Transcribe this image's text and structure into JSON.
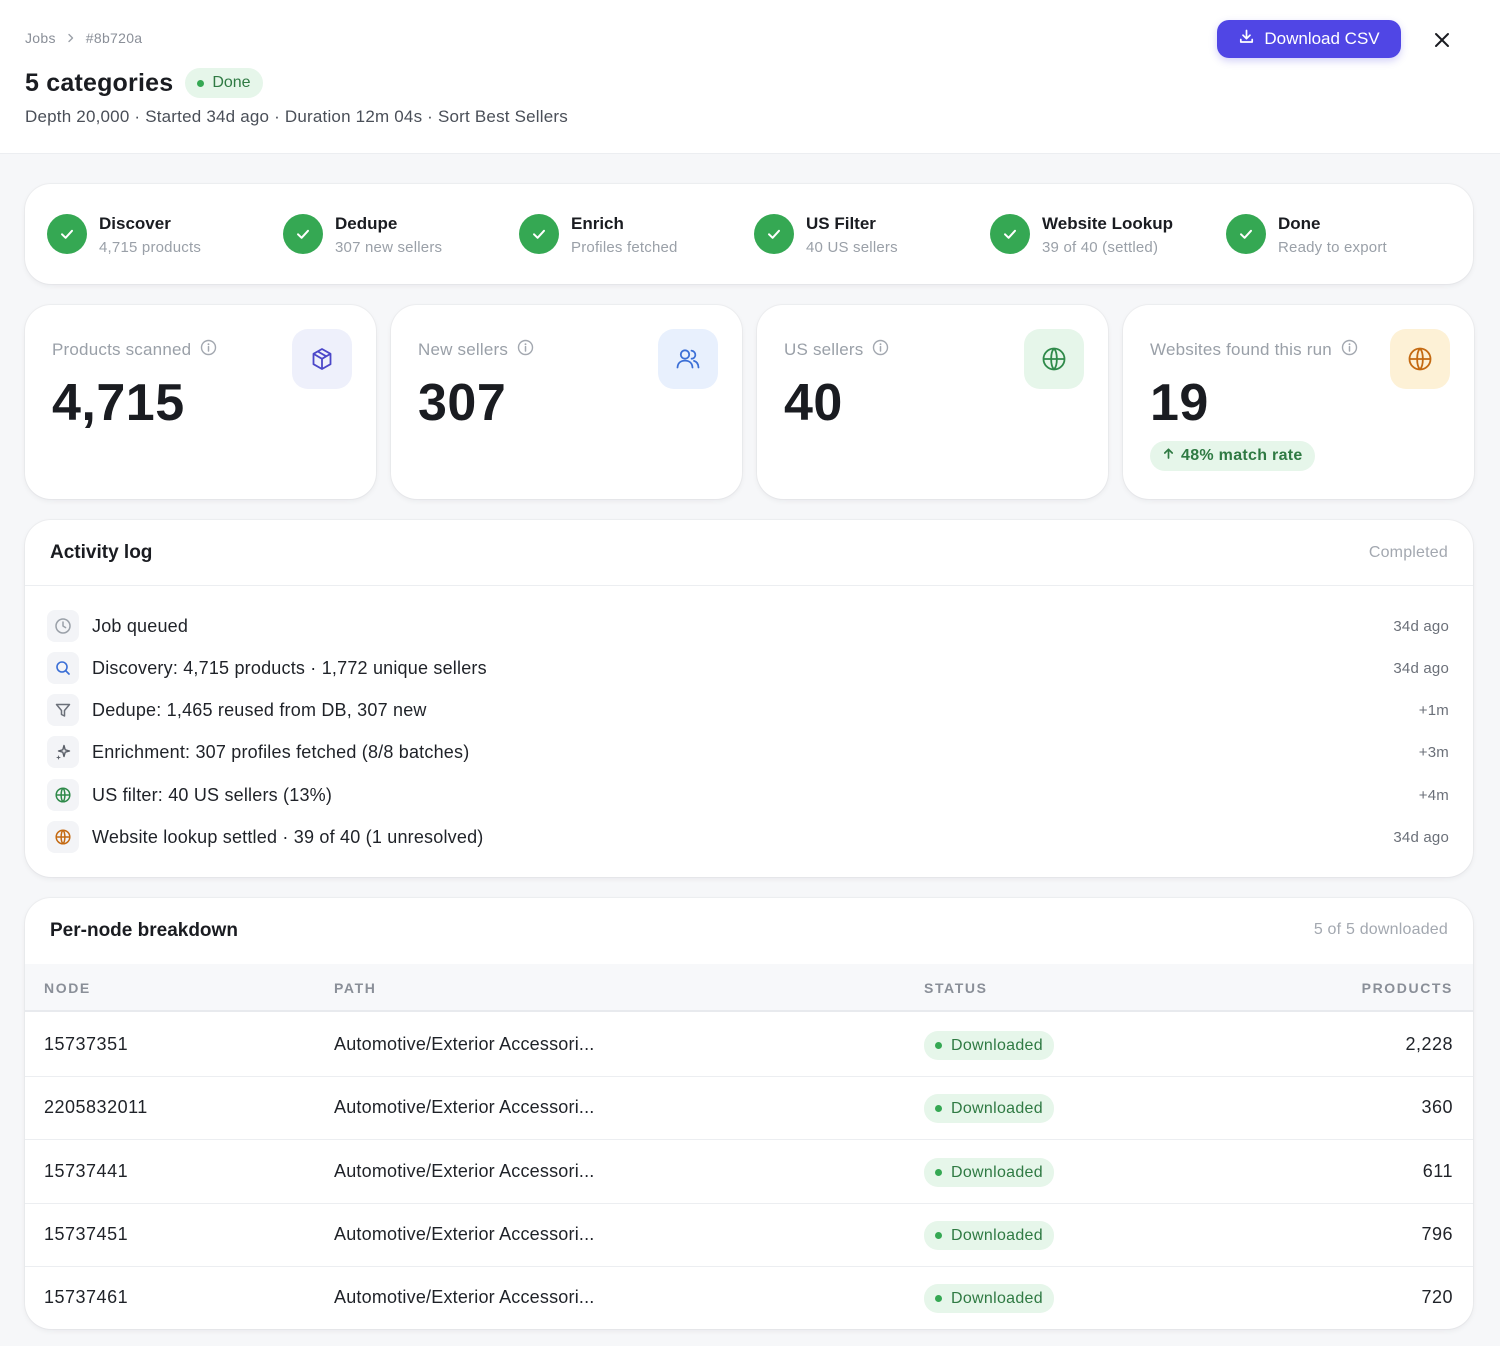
{
  "breadcrumb": {
    "root": "Jobs",
    "current": "#8b720a"
  },
  "header": {
    "title": "5 categories",
    "status": "Done",
    "meta": "Depth 20,000 · Started 34d ago · Duration 12m 04s · Sort Best Sellers",
    "download_label": "Download CSV"
  },
  "pipeline": [
    {
      "label": "Discover",
      "sub": "4,715 products"
    },
    {
      "label": "Dedupe",
      "sub": "307 new sellers"
    },
    {
      "label": "Enrich",
      "sub": "Profiles fetched"
    },
    {
      "label": "US Filter",
      "sub": "40 US sellers"
    },
    {
      "label": "Website Lookup",
      "sub": "39 of 40 (settled)"
    },
    {
      "label": "Done",
      "sub": "Ready to export"
    }
  ],
  "stats": [
    {
      "label": "Products scanned",
      "value": "4,715",
      "icon": "cube-icon",
      "icon_bg": "#eef0fb",
      "icon_color": "#4b47c9"
    },
    {
      "label": "New sellers",
      "value": "307",
      "icon": "users-icon",
      "icon_bg": "#e8f0fd",
      "icon_color": "#3b6fd6"
    },
    {
      "label": "US sellers",
      "value": "40",
      "icon": "globe-icon",
      "icon_bg": "#e6f6ea",
      "icon_color": "#2f8a4a"
    },
    {
      "label": "Websites found this run",
      "value": "19",
      "icon": "globe-icon",
      "icon_bg": "#fdf1d6",
      "icon_color": "#c46a12",
      "badge": "48% match rate"
    }
  ],
  "activity": {
    "title": "Activity log",
    "status": "Completed",
    "items": [
      {
        "icon": "clock-icon",
        "text": "Job queued",
        "time": "34d ago"
      },
      {
        "icon": "search-icon",
        "text": "Discovery: 4,715 products · 1,772 unique sellers",
        "time": "34d ago"
      },
      {
        "icon": "filter-icon",
        "text": "Dedupe: 1,465 reused from DB, 307 new",
        "time": "+1m"
      },
      {
        "icon": "sparkle-icon",
        "text": "Enrichment: 307 profiles fetched (8/8 batches)",
        "time": "+3m"
      },
      {
        "icon": "globe-icon",
        "text": "US filter: 40 US sellers (13%)",
        "time": "+4m"
      },
      {
        "icon": "globe-icon",
        "text": "Website lookup settled · 39 of 40 (1 unresolved)",
        "time": "34d ago"
      }
    ]
  },
  "pernode": {
    "title": "Per-node breakdown",
    "summary": "5 of 5 downloaded",
    "columns": {
      "node": "NODE",
      "path": "PATH",
      "status": "STATUS",
      "products": "PRODUCTS"
    },
    "rows": [
      {
        "node": "15737351",
        "path": "Automotive/Exterior Accessori...",
        "status": "Downloaded",
        "products": "2,228"
      },
      {
        "node": "2205832011",
        "path": "Automotive/Exterior Accessori...",
        "status": "Downloaded",
        "products": "360"
      },
      {
        "node": "15737441",
        "path": "Automotive/Exterior Accessori...",
        "status": "Downloaded",
        "products": "611"
      },
      {
        "node": "15737451",
        "path": "Automotive/Exterior Accessori...",
        "status": "Downloaded",
        "products": "796"
      },
      {
        "node": "15737461",
        "path": "Automotive/Exterior Accessori...",
        "status": "Downloaded",
        "products": "720"
      }
    ]
  }
}
